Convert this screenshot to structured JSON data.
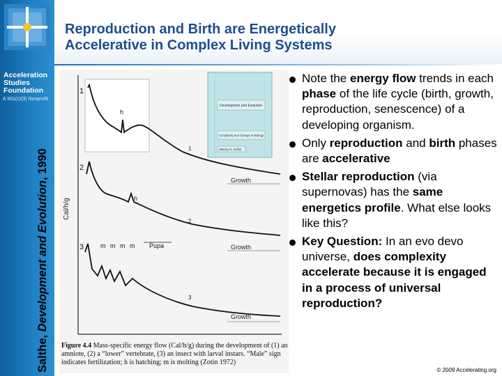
{
  "slide": {
    "title_line1": "Reproduction and Birth are Energetically",
    "title_line2": "Accelerative in Complex Living Systems",
    "org_name": "Acceleration Studies Foundation",
    "org_sub": "A 501(c)(3) Nonprofit",
    "footer": "© 2009 Accelerating.org"
  },
  "side_caption": {
    "author": "Salthe, ",
    "book": "Development and Evolution",
    "year": ", 1990"
  },
  "figure": {
    "book_cover_title": "Development and Evolution",
    "book_cover_subtitle": "Complexity and Change in Biology",
    "book_cover_author": "Stanley N. Salthe",
    "ylabel": "Cal/h/g",
    "panel_labels": [
      "1",
      "2",
      "3"
    ],
    "growth_label": "Growth",
    "h_label": "h",
    "m_label": "m",
    "pupa_label": "Pupa",
    "caption_bold": "Figure 4.4",
    "caption_rest": " Mass-specific energy flow (Cal/h/g) during the development of (1) an amniote, (2) a “lower” vertebrate, (3) an insect with larval instars. “Male” sign indicates fertilization; h is hatching; m is molting (Zotin 1972)"
  },
  "bullets": [
    {
      "parts": [
        [
          "Note the ",
          false
        ],
        [
          "energy flow",
          true
        ],
        [
          " trends in each ",
          false
        ],
        [
          "phase",
          true
        ],
        [
          " of the life cycle (birth, growth, reproduction, senescence) of a developing organism.",
          false
        ]
      ]
    },
    {
      "parts": [
        [
          "Only ",
          false
        ],
        [
          "reproduction",
          true
        ],
        [
          " and ",
          false
        ],
        [
          "birth",
          true
        ],
        [
          " phases are ",
          false
        ],
        [
          "accelerative",
          true
        ]
      ]
    },
    {
      "parts": [
        [
          "Stellar reproduction",
          true
        ],
        [
          " (via supernovas) has the ",
          false
        ],
        [
          "same energetics profile",
          true
        ],
        [
          ". What else looks like this?",
          false
        ]
      ]
    },
    {
      "parts": [
        [
          "Key Question:",
          true
        ],
        [
          " In an evo devo universe, ",
          false
        ],
        [
          "does complexity accelerate because it is engaged in a process of universal reproduction?",
          true
        ]
      ]
    }
  ]
}
